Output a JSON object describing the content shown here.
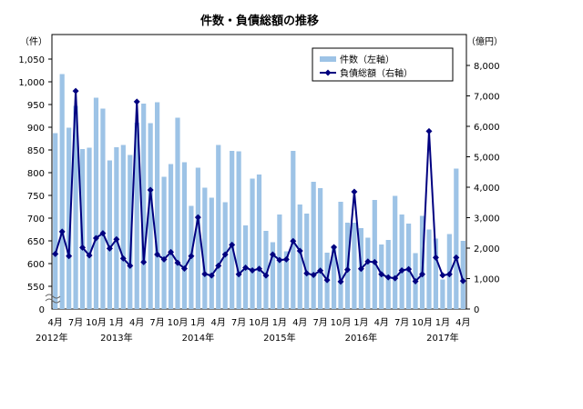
{
  "chart_data": {
    "type": "bar+line",
    "title": "件数・負債総額の推移",
    "left_axis": {
      "unit_label": "（件）",
      "ylim": [
        550,
        1050
      ],
      "ticks": [
        "1,050",
        "1,000",
        "950",
        "900",
        "850",
        "800",
        "750",
        "700",
        "650",
        "600",
        "550"
      ],
      "zero_label": "0",
      "broken": true
    },
    "right_axis": {
      "unit_label": "（億円）",
      "ylim": [
        0,
        8000
      ],
      "ticks": [
        "8,000",
        "7,000",
        "6,000",
        "5,000",
        "4,000",
        "3,000",
        "2,000",
        "1,000",
        "0"
      ]
    },
    "x_month_labels": [
      "4月",
      "7月",
      "10月",
      "1月",
      "4月",
      "7月",
      "10月",
      "1月",
      "4月",
      "7月",
      "10月",
      "1月",
      "4月",
      "7月",
      "10月",
      "1月",
      "4月",
      "7月",
      "10月",
      "1月",
      "4月"
    ],
    "x_year_labels": [
      "2012年",
      "2013年",
      "2014年",
      "2015年",
      "2016年",
      "2017年"
    ],
    "x_range": "2012-04 to 2017-04 (monthly)",
    "legend": {
      "position": "top-right",
      "bar_label": "件数（左軸）",
      "line_label": "負債総額（右軸）"
    },
    "colors": {
      "bar": "#9dc3e6",
      "line": "#000080"
    },
    "series": [
      {
        "name": "件数（左軸）",
        "type": "bar",
        "values": [
          887,
          1017,
          899,
          947,
          852,
          855,
          965,
          941,
          827,
          856,
          861,
          839,
          910,
          952,
          909,
          955,
          791,
          819,
          921,
          823,
          727,
          811,
          767,
          745,
          861,
          735,
          848,
          847,
          684,
          787,
          796,
          672,
          647,
          708,
          627,
          848,
          730,
          710,
          780,
          766,
          624,
          640,
          736,
          690,
          690,
          678,
          657,
          740,
          642,
          652,
          749,
          708,
          688,
          623,
          705,
          675,
          655,
          565,
          665,
          809,
          650
        ]
      },
      {
        "name": "負債総額（右軸）",
        "type": "line",
        "values": [
          1810,
          2540,
          1740,
          7160,
          2020,
          1760,
          2330,
          2490,
          1990,
          2290,
          1660,
          1420,
          6810,
          1540,
          3910,
          1790,
          1630,
          1870,
          1520,
          1330,
          1740,
          3010,
          1150,
          1100,
          1420,
          1790,
          2110,
          1140,
          1360,
          1270,
          1320,
          1100,
          1790,
          1610,
          1630,
          2230,
          1910,
          1170,
          1120,
          1260,
          950,
          2030,
          900,
          1290,
          3850,
          1320,
          1560,
          1540,
          1140,
          1040,
          1010,
          1270,
          1310,
          910,
          1140,
          5840,
          1690,
          1110,
          1140,
          1690,
          920
        ]
      }
    ]
  }
}
